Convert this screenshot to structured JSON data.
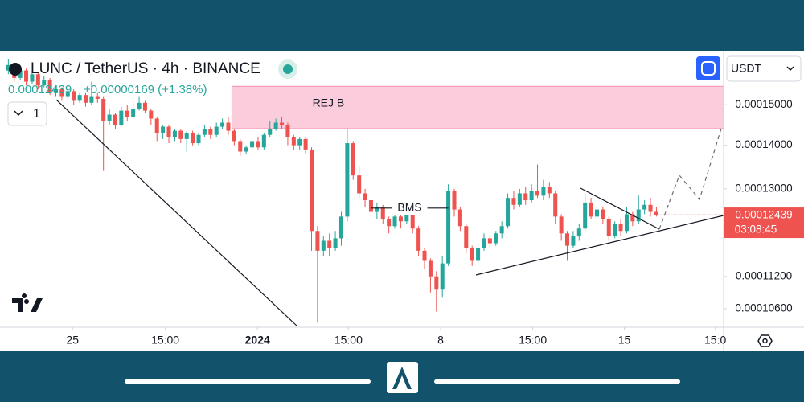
{
  "chart_data": {
    "type": "candlestick",
    "title": "LUNC / TetherUS · 4h · BINANCE",
    "price_line": {
      "price": "0.00012439",
      "change": "+0.00000169 (+1.38%)"
    },
    "interval_control": "1",
    "currency": "USDT",
    "log_scale": true,
    "up_color": "#26a69a",
    "down_color": "#ef5350",
    "ylim": [
      0.000103,
      0.000164
    ],
    "yticks": [
      {
        "value": 0.00015,
        "label": "0.00015000"
      },
      {
        "value": 0.00014,
        "label": "0.00014000"
      },
      {
        "value": 0.00013,
        "label": "0.00013000"
      },
      {
        "value": 0.000112,
        "label": "0.00011200"
      },
      {
        "value": 0.000106,
        "label": "0.00010600"
      }
    ],
    "xlim": [
      -1.4,
      120.3
    ],
    "xticks": [
      {
        "value": 10.8,
        "label": "25"
      },
      {
        "value": 26.4,
        "label": "15:00"
      },
      {
        "value": 41.9,
        "label": "2024"
      },
      {
        "value": 57.2,
        "label": "15:00"
      },
      {
        "value": 72.7,
        "label": "8"
      },
      {
        "value": 88.2,
        "label": "15:00"
      },
      {
        "value": 103.6,
        "label": "15"
      },
      {
        "value": 118.9,
        "label": "15:0"
      }
    ],
    "last_price": {
      "value": 0.00012439,
      "label": "0.00012439",
      "countdown": "03:08:45"
    },
    "zones": [
      {
        "label": "REJ B",
        "top": 0.0001548,
        "bottom": 0.000144,
        "x_start": 37.6
      }
    ],
    "levels": [
      {
        "label": "BMS",
        "value": 0.0001258,
        "x_start": 61,
        "x_end": 74
      }
    ],
    "ohlc": [
      [
        0.000159,
        0.000162,
        0.000158,
        0.0001605
      ],
      [
        0.0001605,
        0.000161,
        0.000156,
        0.000157
      ],
      [
        0.000157,
        0.00016,
        0.0001565,
        0.000159
      ],
      [
        0.000159,
        0.0001595,
        0.000155,
        0.000156
      ],
      [
        0.000156,
        0.000159,
        0.0001555,
        0.000158
      ],
      [
        0.000158,
        0.0001585,
        0.000154,
        0.000155
      ],
      [
        0.000155,
        0.0001575,
        0.0001545,
        0.0001565
      ],
      [
        0.0001565,
        0.000157,
        0.0001525,
        0.000153
      ],
      [
        0.000153,
        0.000155,
        0.000152,
        0.000154
      ],
      [
        0.000154,
        0.0001545,
        0.000151,
        0.000152
      ],
      [
        0.000152,
        0.000154,
        0.0001515,
        0.0001535
      ],
      [
        0.0001535,
        0.000154,
        0.00015,
        0.000151
      ],
      [
        0.000151,
        0.000153,
        0.0001505,
        0.0001525
      ],
      [
        0.0001525,
        0.000153,
        0.0001495,
        0.0001505
      ],
      [
        0.0001505,
        0.000156,
        0.00015,
        0.000152
      ],
      [
        0.000152,
        0.000153,
        0.0001505,
        0.0001515
      ],
      [
        0.0001515,
        0.000152,
        0.000134,
        0.000146
      ],
      [
        0.000146,
        0.000149,
        0.000145,
        0.0001475
      ],
      [
        0.0001475,
        0.000148,
        0.000144,
        0.000145
      ],
      [
        0.000145,
        0.0001495,
        0.0001445,
        0.0001485
      ],
      [
        0.0001485,
        0.00015,
        0.000146,
        0.000147
      ],
      [
        0.000147,
        0.0001505,
        0.0001465,
        0.000149
      ],
      [
        0.000149,
        0.000152,
        0.0001485,
        0.0001505
      ],
      [
        0.0001505,
        0.000151,
        0.000148,
        0.0001485
      ],
      [
        0.0001485,
        0.000149,
        0.000145,
        0.0001465
      ],
      [
        0.0001465,
        0.000147,
        0.000141,
        0.000143
      ],
      [
        0.000143,
        0.000145,
        0.0001415,
        0.0001445
      ],
      [
        0.0001445,
        0.000145,
        0.0001405,
        0.000142
      ],
      [
        0.000142,
        0.000144,
        0.000141,
        0.0001435
      ],
      [
        0.0001435,
        0.000144,
        0.0001405,
        0.0001415
      ],
      [
        0.0001415,
        0.0001435,
        0.0001385,
        0.000143
      ],
      [
        0.000143,
        0.0001435,
        0.00014,
        0.0001405
      ],
      [
        0.0001405,
        0.000143,
        0.00014,
        0.0001425
      ],
      [
        0.0001425,
        0.000145,
        0.000142,
        0.000144
      ],
      [
        0.000144,
        0.0001445,
        0.0001415,
        0.0001425
      ],
      [
        0.0001425,
        0.0001455,
        0.000142,
        0.0001445
      ],
      [
        0.0001445,
        0.0001465,
        0.000144,
        0.0001455
      ],
      [
        0.0001455,
        0.000147,
        0.0001425,
        0.0001435
      ],
      [
        0.0001435,
        0.000144,
        0.00014,
        0.000141
      ],
      [
        0.000141,
        0.0001415,
        0.0001375,
        0.0001385
      ],
      [
        0.0001385,
        0.00014,
        0.000138,
        0.0001395
      ],
      [
        0.0001395,
        0.0001415,
        0.000139,
        0.000141
      ],
      [
        0.000141,
        0.000142,
        0.000139,
        0.0001395
      ],
      [
        0.0001395,
        0.000143,
        0.000139,
        0.0001425
      ],
      [
        0.0001425,
        0.000146,
        0.000142,
        0.000144
      ],
      [
        0.000144,
        0.0001465,
        0.0001435,
        0.0001455
      ],
      [
        0.0001455,
        0.000147,
        0.000144,
        0.000145
      ],
      [
        0.000145,
        0.0001455,
        0.00014,
        0.000142
      ],
      [
        0.000142,
        0.0001425,
        0.000139,
        0.00014
      ],
      [
        0.00014,
        0.000142,
        0.000139,
        0.0001415
      ],
      [
        0.0001415,
        0.000142,
        0.000138,
        0.000139
      ],
      [
        0.000139,
        0.0001395,
        0.000117,
        0.000121
      ],
      [
        0.000121,
        0.000122,
        0.0001035,
        0.000117
      ],
      [
        0.000117,
        0.00012,
        0.000116,
        0.000119
      ],
      [
        0.000119,
        0.0001205,
        0.000116,
        0.0001175
      ],
      [
        0.0001175,
        0.000121,
        0.000117,
        0.0001195
      ],
      [
        0.0001195,
        0.000125,
        0.000118,
        0.000124
      ],
      [
        0.000124,
        0.000144,
        0.000123,
        0.0001405
      ],
      [
        0.0001405,
        0.000141,
        0.000132,
        0.000133
      ],
      [
        0.000133,
        0.000135,
        0.000128,
        0.000129
      ],
      [
        0.000129,
        0.00013,
        0.000126,
        0.0001275
      ],
      [
        0.0001275,
        0.000128,
        0.000124,
        0.000125
      ],
      [
        0.000125,
        0.000127,
        0.0001235,
        0.000126
      ],
      [
        0.000126,
        0.0001265,
        0.0001225,
        0.0001235
      ],
      [
        0.0001235,
        0.000124,
        0.0001205,
        0.000122
      ],
      [
        0.000122,
        0.0001245,
        0.0001215,
        0.000124
      ],
      [
        0.000124,
        0.0001245,
        0.0001215,
        0.000123
      ],
      [
        0.000123,
        0.000125,
        0.0001225,
        0.0001245
      ],
      [
        0.0001245,
        0.000125,
        0.0001205,
        0.0001215
      ],
      [
        0.0001215,
        0.000122,
        0.000116,
        0.000117
      ],
      [
        0.000117,
        0.0001175,
        0.0001135,
        0.000115
      ],
      [
        0.000115,
        0.0001155,
        0.000109,
        0.000112
      ],
      [
        0.000112,
        0.000113,
        0.0001055,
        0.0001095
      ],
      [
        0.0001095,
        0.000116,
        0.000108,
        0.0001145
      ],
      [
        0.0001145,
        0.000131,
        0.000114,
        0.0001295
      ],
      [
        0.0001295,
        0.00013,
        0.000124,
        0.0001255
      ],
      [
        0.0001255,
        0.000126,
        0.000121,
        0.000122
      ],
      [
        0.000122,
        0.0001225,
        0.0001165,
        0.0001175
      ],
      [
        0.0001175,
        0.000118,
        0.000114,
        0.000115
      ],
      [
        0.000115,
        0.0001185,
        0.0001145,
        0.0001175
      ],
      [
        0.0001175,
        0.0001205,
        0.000117,
        0.0001195
      ],
      [
        0.0001195,
        0.00012,
        0.0001175,
        0.0001185
      ],
      [
        0.0001185,
        0.000121,
        0.000118,
        0.0001205
      ],
      [
        0.0001205,
        0.000123,
        0.0001195,
        0.000122
      ],
      [
        0.000122,
        0.000129,
        0.0001215,
        0.000128
      ],
      [
        0.000128,
        0.0001295,
        0.0001255,
        0.0001265
      ],
      [
        0.0001265,
        0.00013,
        0.000126,
        0.000129
      ],
      [
        0.000129,
        0.0001305,
        0.0001265,
        0.0001275
      ],
      [
        0.0001275,
        0.000131,
        0.000127,
        0.0001295
      ],
      [
        0.0001295,
        0.0001355,
        0.000128,
        0.0001285
      ],
      [
        0.0001285,
        0.000132,
        0.0001275,
        0.0001305
      ],
      [
        0.0001305,
        0.0001315,
        0.000128,
        0.000129
      ],
      [
        0.000129,
        0.0001295,
        0.0001225,
        0.000124
      ],
      [
        0.000124,
        0.0001245,
        0.000119,
        0.0001205
      ],
      [
        0.0001205,
        0.000121,
        0.000115,
        0.000118
      ],
      [
        0.000118,
        0.000121,
        0.0001175,
        0.00012
      ],
      [
        0.00012,
        0.0001225,
        0.000119,
        0.0001215
      ],
      [
        0.0001215,
        0.000129,
        0.000121,
        0.000127
      ],
      [
        0.000127,
        0.000128,
        0.0001235,
        0.000124
      ],
      [
        0.000124,
        0.0001265,
        0.0001235,
        0.0001255
      ],
      [
        0.0001255,
        0.000126,
        0.0001225,
        0.0001235
      ],
      [
        0.0001235,
        0.000124,
        0.000119,
        0.00012
      ],
      [
        0.00012,
        0.000123,
        0.0001195,
        0.0001225
      ],
      [
        0.0001225,
        0.0001235,
        0.00012,
        0.000121
      ],
      [
        0.000121,
        0.000126,
        0.0001205,
        0.0001245
      ],
      [
        0.0001245,
        0.000125,
        0.000122,
        0.000123
      ],
      [
        0.000123,
        0.0001285,
        0.0001225,
        0.0001255
      ],
      [
        0.0001255,
        0.0001275,
        0.0001245,
        0.0001265
      ],
      [
        0.0001265,
        0.000128,
        0.000124,
        0.000125
      ],
      [
        0.000125,
        0.000126,
        0.000124,
        0.00012439
      ]
    ]
  }
}
